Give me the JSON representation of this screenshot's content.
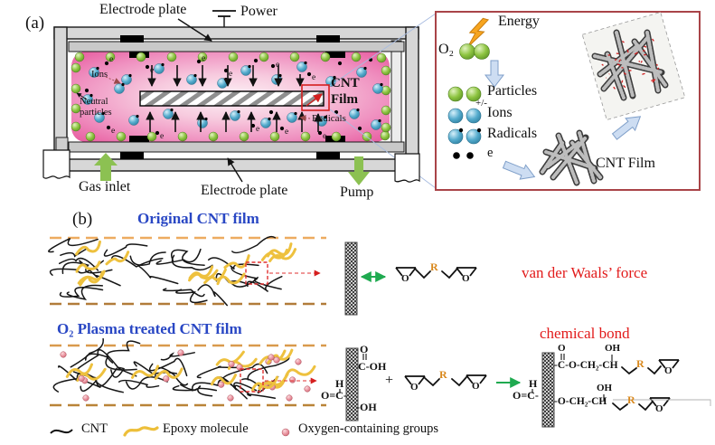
{
  "panel_a": {
    "label": "(a)",
    "electrode_plate_top": "Electrode plate",
    "power": "Power",
    "ions": "Ions",
    "neutral_1": "Neutral",
    "neutral_2": "particles",
    "cnt_1": "CNT",
    "cnt_2": "Film",
    "radicals": "Radicals",
    "electrode_plate_bottom": "Electrode plate",
    "gas_inlet": "Gas inlet",
    "pump": "Pump",
    "e": "e",
    "inset": {
      "energy": "Energy",
      "o2": "O₂",
      "particles": "Particles",
      "plus_minus": "+/-",
      "ions": "Ions",
      "radicals": "Radicals",
      "e": "e",
      "cnt_film": "CNT Film"
    }
  },
  "panel_b": {
    "label": "(b)",
    "row1_title": "Original CNT film",
    "row2_title": "O₂ Plasma treated  CNT film",
    "van_der_waals": "van der Waals’ force",
    "chemical_bond": "chemical bond",
    "plus": "+",
    "chem": {
      "O": "O",
      "OH": "OH",
      "C_OH": "C-OH",
      "H": "H",
      "O_C": "O=C-",
      "OH_dash": "-OH",
      "R": "R",
      "chain_top": "-C-O-CH₂-CH",
      "chain_bottom": "-O-CH₂-CH"
    },
    "legend": {
      "cnt": "CNT",
      "epoxy": "Epoxy molecule",
      "oxygen": "Oxygen-containing groups"
    }
  },
  "colors": {
    "plasma_edge": "#e7549b",
    "title_blue": "#2947c4",
    "red_text": "#e21b1b",
    "inset_border": "#a94448",
    "epoxy_yellow": "#eec13e",
    "green_arrow": "#8cc152"
  }
}
